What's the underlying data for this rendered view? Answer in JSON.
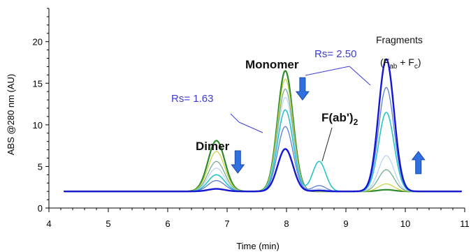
{
  "chart_data": {
    "type": "line",
    "xlabel": "Time (min)",
    "ylabel": "ABS @280 nm (AU)",
    "xlim": [
      4,
      11
    ],
    "ylim": [
      0,
      24
    ],
    "xticks": [
      "4",
      "5",
      "6",
      "7",
      "8",
      "9",
      "10",
      "11"
    ],
    "yticks": [
      "0",
      "5",
      "10",
      "15",
      "20"
    ],
    "baseline": 2.0,
    "series": [
      {
        "color": "#2e8b2e",
        "width": 2.2,
        "peaks": {
          "dimer": 6.1,
          "monomer": 14.5,
          "fab2": 0.0,
          "fragments": 0.2
        }
      },
      {
        "color": "#c7d43a",
        "width": 1.2,
        "peaks": {
          "dimer": 4.8,
          "monomer": 13.5,
          "fab2": 0.0,
          "fragments": 0.9
        }
      },
      {
        "color": "#6fa88a",
        "width": 1.2,
        "peaks": {
          "dimer": 3.6,
          "monomer": 12.3,
          "fab2": 0.1,
          "fragments": 2.6
        }
      },
      {
        "color": "#b9d3ef",
        "width": 1.2,
        "peaks": {
          "dimer": 2.8,
          "monomer": 11.3,
          "fab2": 0.3,
          "fragments": 4.3
        }
      },
      {
        "color": "#29c4c9",
        "width": 1.6,
        "peaks": {
          "dimer": 2.0,
          "monomer": 9.8,
          "fab2": 3.6,
          "fragments": 9.5
        }
      },
      {
        "color": "#5b7fd1",
        "width": 1.3,
        "peaks": {
          "dimer": 1.3,
          "monomer": 7.8,
          "fab2": 0.7,
          "fragments": 12.5
        }
      },
      {
        "color": "#1515d4",
        "width": 2.4,
        "peaks": {
          "dimer": 0.3,
          "monomer": 5.1,
          "fab2": 0.1,
          "fragments": 15.9
        }
      }
    ],
    "peak_shape": {
      "dimer": {
        "center": 6.82,
        "sigma": 0.14
      },
      "monomer": {
        "center": 7.98,
        "sigma": 0.13
      },
      "fab2": {
        "center": 8.55,
        "sigma": 0.11
      },
      "fragments": {
        "center": 9.68,
        "sigma": 0.13
      }
    },
    "annotations": {
      "dimer": "Dimer",
      "monomer": "Monomer",
      "fab2_main": "F(ab')",
      "fab2_sub": "2",
      "fragments_title": "Fragments",
      "fragments_open": "(F",
      "fragments_sub1": "ab",
      "fragments_mid": " + F",
      "fragments_sub2": "c",
      "fragments_close": ")",
      "rs1": "Rs= 1.63",
      "rs2": "Rs= 2.50"
    },
    "arrows": [
      {
        "x": 7.18,
        "y": 5.2,
        "direction": "down"
      },
      {
        "x": 8.27,
        "y": 14.0,
        "direction": "down"
      },
      {
        "x": 10.22,
        "y": 5.8,
        "direction": "up"
      }
    ]
  }
}
